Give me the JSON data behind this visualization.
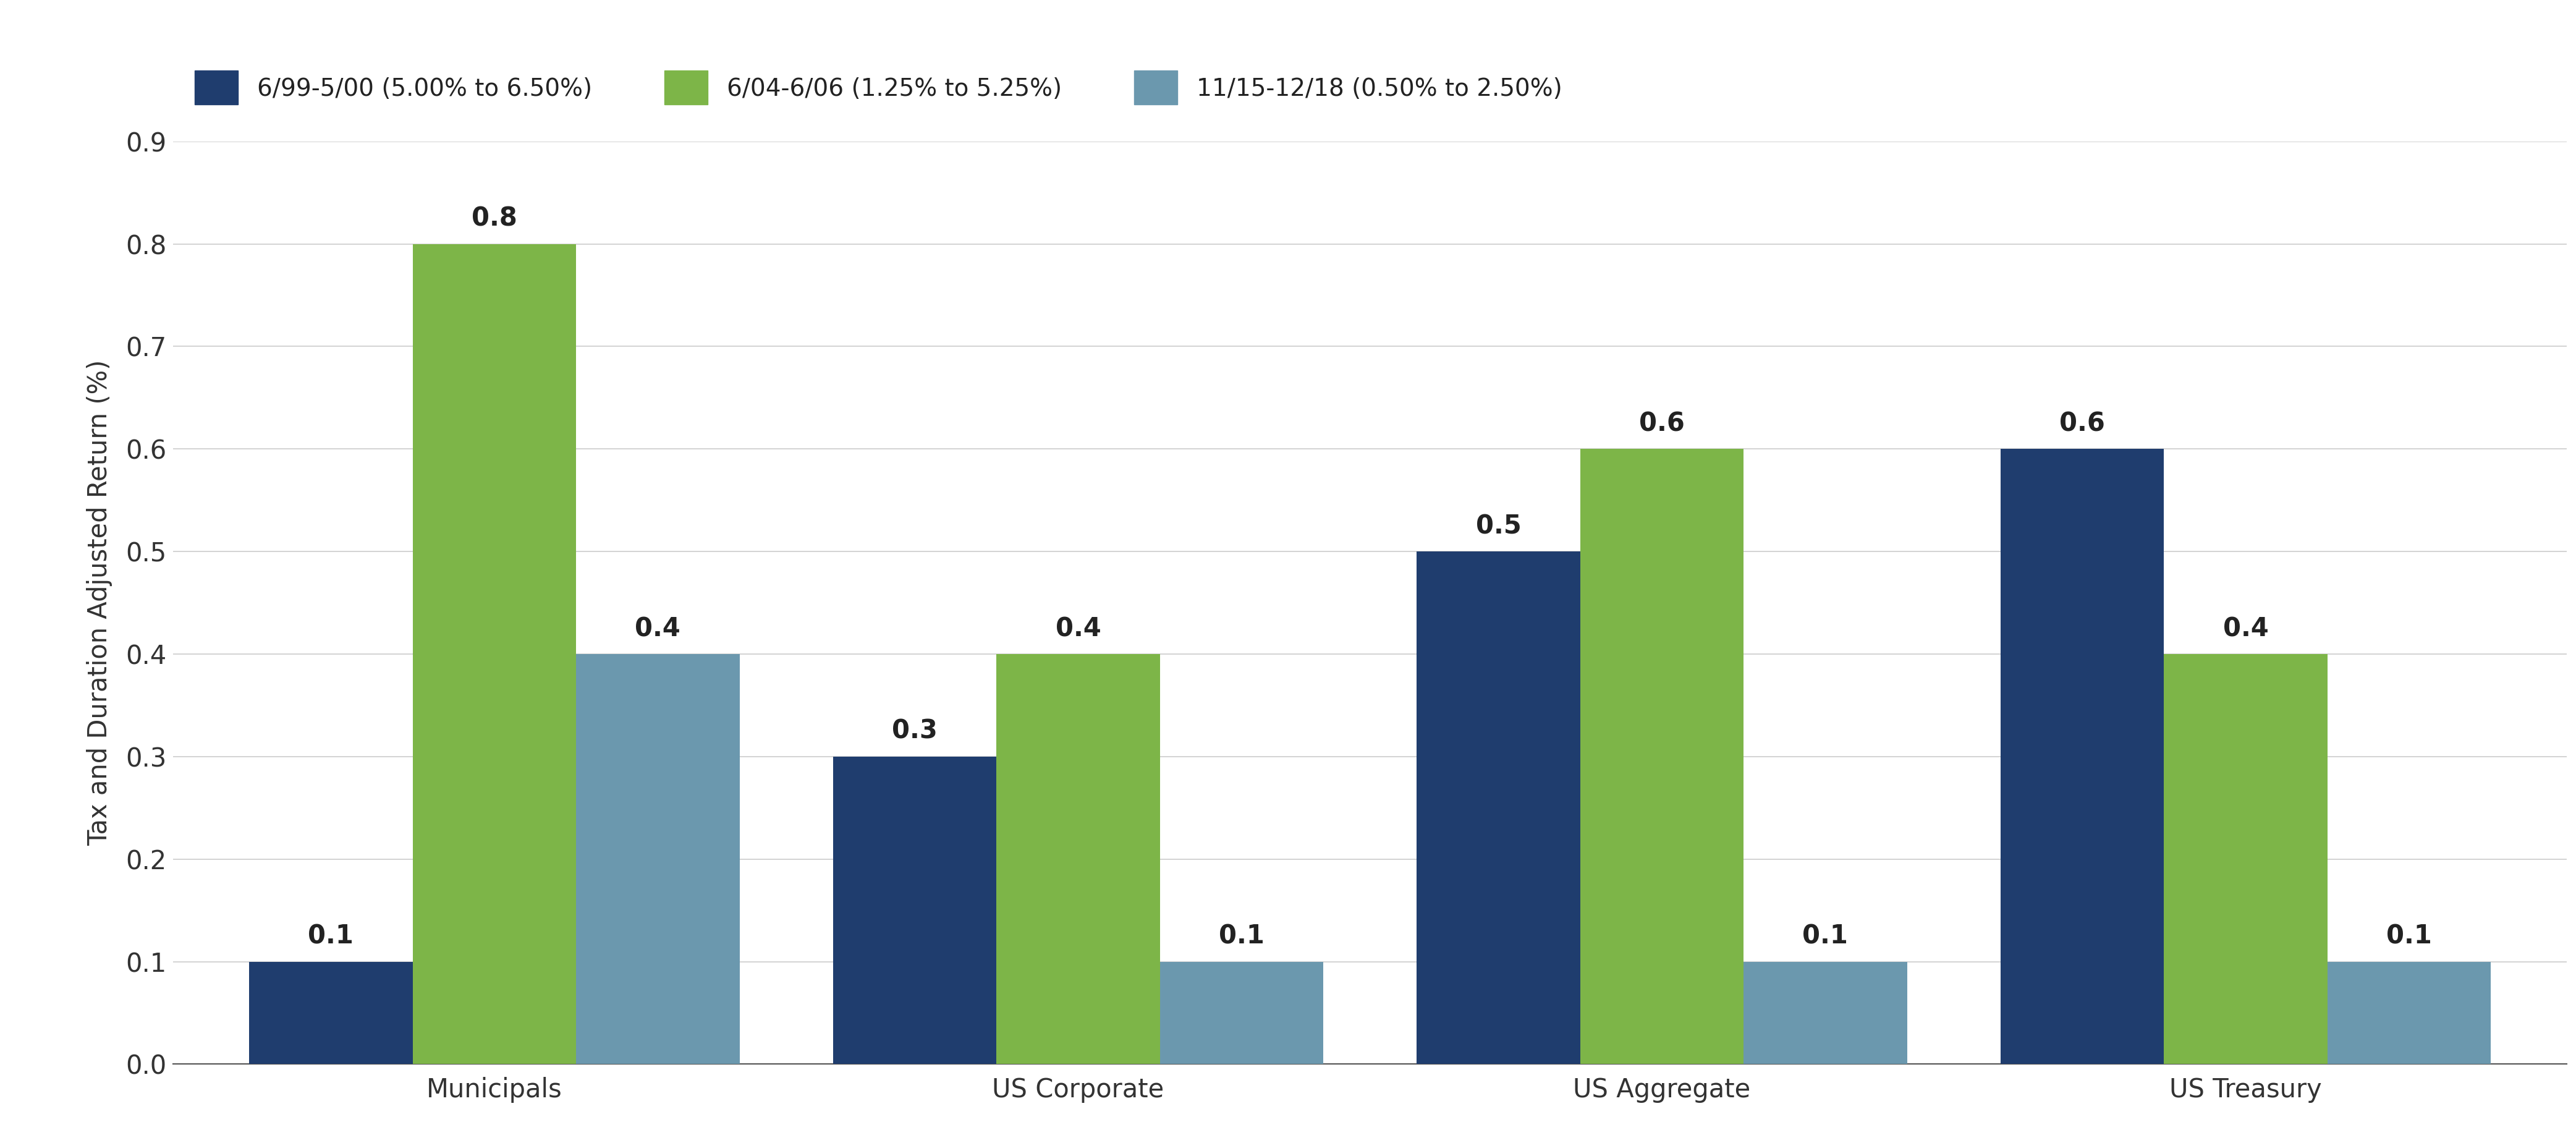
{
  "categories": [
    "Municipals",
    "US Corporate",
    "US Aggregate",
    "US Treasury"
  ],
  "series": [
    {
      "label": "6/99-5/00 (5.00% to 6.50%)",
      "color": "#1f3d6e",
      "values": [
        0.1,
        0.3,
        0.5,
        0.6
      ]
    },
    {
      "label": "6/04-6/06 (1.25% to 5.25%)",
      "color": "#7db548",
      "values": [
        0.8,
        0.4,
        0.6,
        0.4
      ]
    },
    {
      "label": "11/15-12/18 (0.50% to 2.50%)",
      "color": "#6b98ae",
      "values": [
        0.4,
        0.1,
        0.1,
        0.1
      ]
    }
  ],
  "ylabel": "Tax and Duration Adjusted Return (%)",
  "ylim": [
    0,
    0.9
  ],
  "yticks": [
    0.0,
    0.1,
    0.2,
    0.3,
    0.4,
    0.5,
    0.6,
    0.7,
    0.8,
    0.9
  ],
  "background_color": "#ffffff",
  "grid_color": "#cccccc",
  "bar_width": 0.28,
  "tick_fontsize": 30,
  "legend_fontsize": 28,
  "ylabel_fontsize": 30,
  "bar_label_fontsize": 30
}
